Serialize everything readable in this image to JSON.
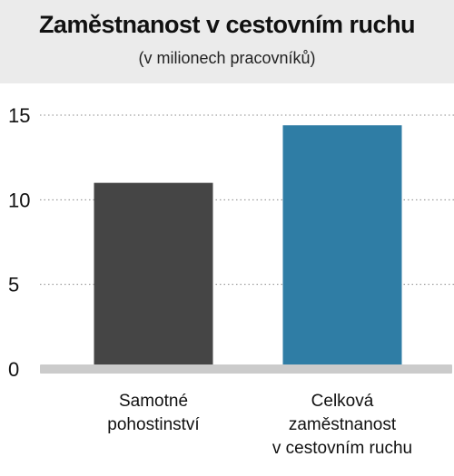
{
  "header": {
    "title": "Zaměstnanost v cestovním ruchu",
    "subtitle": "(v milionech pracovníků)"
  },
  "colors": {
    "bar_1": "#454545",
    "bar_2": "#2f7da5",
    "gridline": "#888888",
    "baseline": "#cbcbcb",
    "header_bg": "#ebebeb"
  },
  "chart_data": {
    "type": "bar",
    "categories": [
      [
        "Samotné",
        "pohostinství"
      ],
      [
        "Celková",
        "zaměstnanost",
        "v cestovním ruchu"
      ]
    ],
    "values": [
      11,
      14.4
    ],
    "title": "Zaměstnanost v cestovním ruchu",
    "subtitle": "(v milionech pracovníků)",
    "xlabel": "",
    "ylabel": "",
    "ylim": [
      0,
      15
    ],
    "yticks": [
      0,
      5,
      10,
      15
    ],
    "grid": true,
    "grid_style": "dotted"
  }
}
